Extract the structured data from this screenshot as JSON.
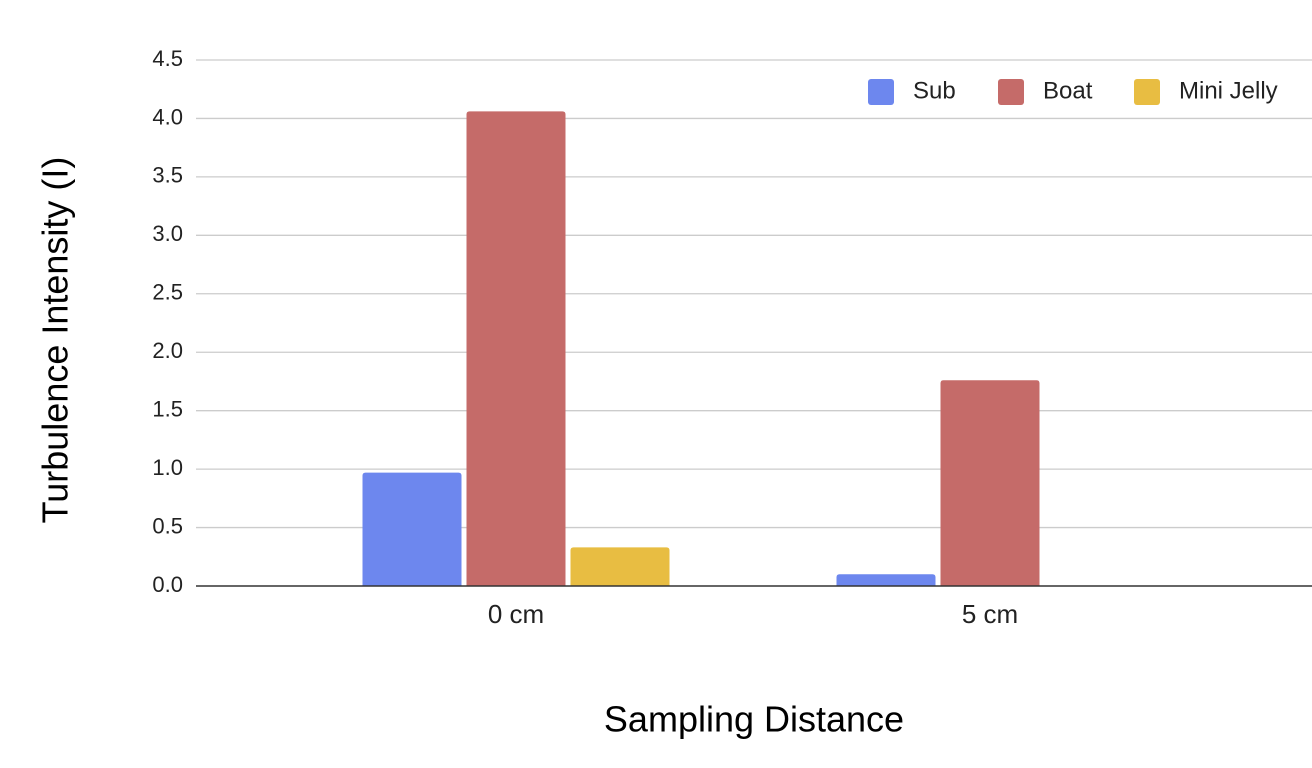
{
  "chart_data": {
    "type": "bar",
    "title": "",
    "xlabel": "Sampling Distance",
    "ylabel": "Turbulence Intensity (I)",
    "categories": [
      "0 cm",
      "5 cm"
    ],
    "series": [
      {
        "name": "Sub",
        "color": "#6d87ee",
        "values": [
          0.97,
          0.1
        ]
      },
      {
        "name": "Boat",
        "color": "#c56b69",
        "values": [
          4.06,
          1.76
        ]
      },
      {
        "name": "Mini Jelly",
        "color": "#e8bd42",
        "values": [
          0.33,
          0
        ]
      }
    ],
    "ylim": [
      0,
      4.5
    ],
    "yticks": [
      "0.0",
      "0.5",
      "1.0",
      "1.5",
      "2.0",
      "2.5",
      "3.0",
      "3.5",
      "4.0",
      "4.5"
    ],
    "grid": true,
    "legend_position": "top-right"
  }
}
